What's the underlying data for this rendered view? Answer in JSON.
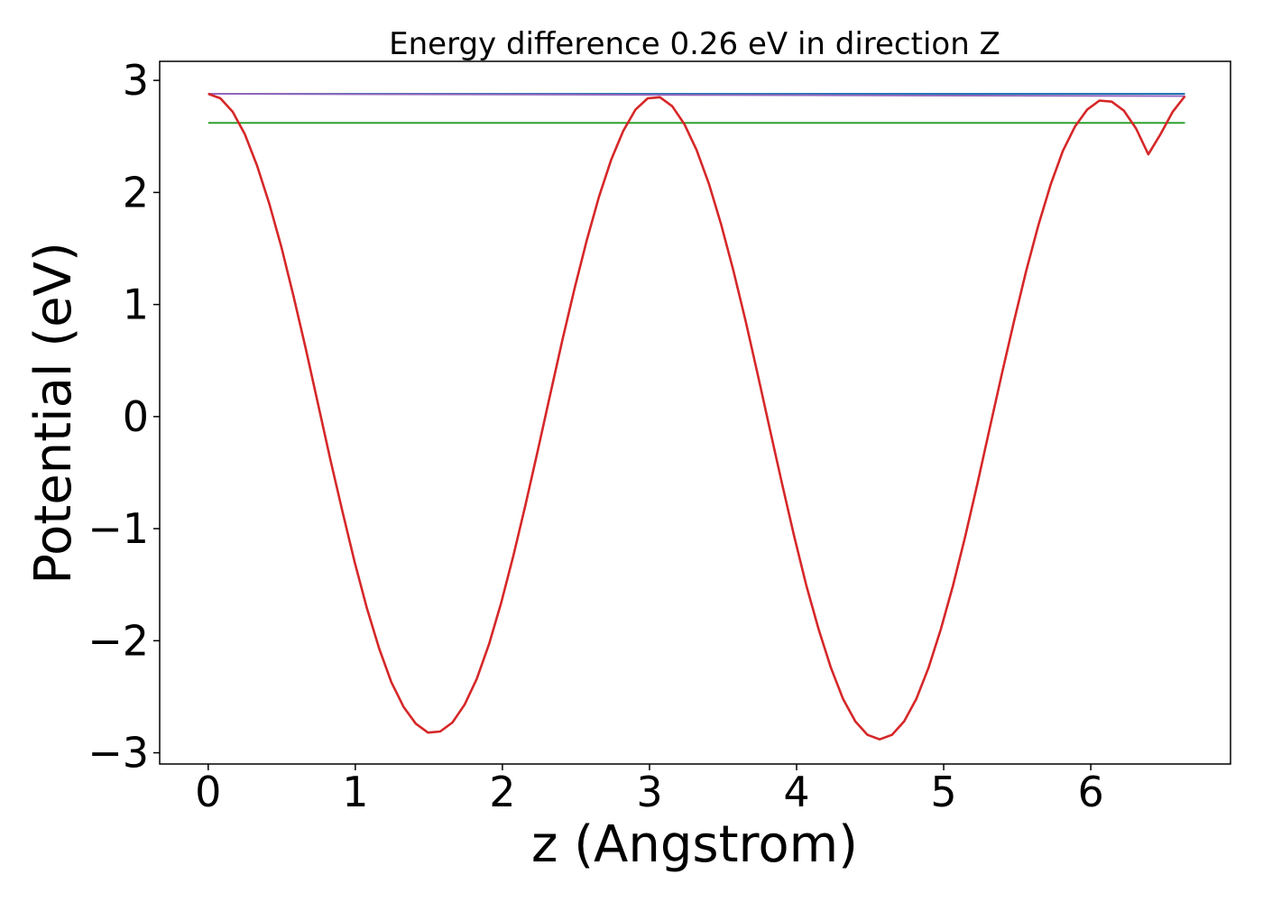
{
  "chart_data": {
    "type": "line",
    "title": "Energy difference 0.26 eV in direction Z",
    "xlabel": "z (Angstrom)",
    "ylabel": "Potential (eV)",
    "xlim": [
      -0.33,
      6.95
    ],
    "ylim": [
      -3.1,
      3.17
    ],
    "x_ticks": [
      0,
      1,
      2,
      3,
      4,
      5,
      6
    ],
    "x_tick_labels": [
      "0",
      "1",
      "2",
      "3",
      "4",
      "5",
      "6"
    ],
    "y_ticks": [
      -3,
      -2,
      -1,
      0,
      1,
      2,
      3
    ],
    "y_tick_labels": [
      "−3",
      "−2",
      "−1",
      "0",
      "1",
      "2",
      "3"
    ],
    "grid": false,
    "series": [
      {
        "color": "#1f77b4",
        "style": "line",
        "x": [
          0,
          6.64
        ],
        "y": [
          2.88,
          2.88
        ]
      },
      {
        "color": "#2ca02c",
        "style": "line",
        "x": [
          0,
          6.64
        ],
        "y": [
          2.62,
          2.62
        ]
      },
      {
        "color": "#9467bd",
        "style": "line",
        "x": [
          0,
          6.64
        ],
        "y": [
          2.88,
          2.86
        ]
      },
      {
        "color": "#d62728",
        "style": "curve",
        "x": [
          0,
          0.083,
          0.166,
          0.249,
          0.332,
          0.415,
          0.498,
          0.581,
          0.664,
          0.747,
          0.83,
          0.913,
          0.996,
          1.079,
          1.162,
          1.245,
          1.328,
          1.411,
          1.494,
          1.577,
          1.66,
          1.743,
          1.826,
          1.909,
          1.992,
          2.075,
          2.158,
          2.241,
          2.324,
          2.407,
          2.49,
          2.573,
          2.656,
          2.739,
          2.822,
          2.905,
          2.988,
          3.071,
          3.154,
          3.237,
          3.32,
          3.403,
          3.486,
          3.569,
          3.652,
          3.735,
          3.818,
          3.901,
          3.984,
          4.067,
          4.15,
          4.233,
          4.316,
          4.399,
          4.482,
          4.565,
          4.648,
          4.731,
          4.814,
          4.897,
          4.98,
          5.063,
          5.146,
          5.229,
          5.312,
          5.395,
          5.478,
          5.561,
          5.644,
          5.727,
          5.81,
          5.893,
          5.976,
          6.059,
          6.142,
          6.225,
          6.308,
          6.391,
          6.474,
          6.557,
          6.64
        ],
        "y": [
          2.88,
          2.84,
          2.72,
          2.52,
          2.24,
          1.9,
          1.51,
          1.07,
          0.6,
          0.11,
          -0.38,
          -0.85,
          -1.3,
          -1.71,
          -2.07,
          -2.37,
          -2.59,
          -2.74,
          -2.82,
          -2.81,
          -2.73,
          -2.57,
          -2.34,
          -2.03,
          -1.66,
          -1.24,
          -0.78,
          -0.3,
          0.19,
          0.68,
          1.14,
          1.57,
          1.96,
          2.29,
          2.55,
          2.74,
          2.84,
          2.85,
          2.77,
          2.61,
          2.38,
          2.08,
          1.72,
          1.31,
          0.86,
          0.38,
          -0.11,
          -0.6,
          -1.07,
          -1.51,
          -1.9,
          -2.24,
          -2.52,
          -2.72,
          -2.84,
          -2.88,
          -2.84,
          -2.72,
          -2.52,
          -2.24,
          -1.9,
          -1.51,
          -1.07,
          -0.6,
          -0.11,
          0.38,
          0.85,
          1.3,
          1.71,
          2.07,
          2.37,
          2.59,
          2.74,
          2.82,
          2.81,
          2.73,
          2.57,
          2.34,
          2.52,
          2.72,
          2.86
        ]
      }
    ]
  }
}
